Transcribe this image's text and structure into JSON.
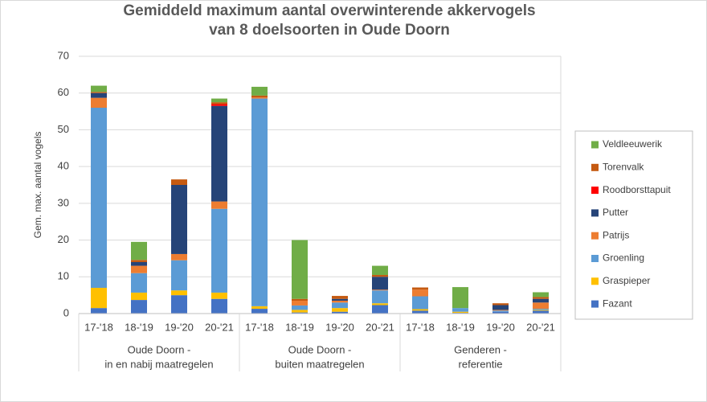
{
  "chart_data": {
    "type": "stacked_bar",
    "title": [
      "Gemiddeld maximum aantal overwinterende akkervogels",
      "van 8 doelsoorten in Oude Doorn"
    ],
    "y_label": "Gem. max. aantal vogels",
    "categories": [
      "17-'18",
      "18-'19",
      "19-'20",
      "20-'21",
      "17-'18",
      "18-'19",
      "19-'20",
      "20-'21",
      "17-'18",
      "18-'19",
      "19-'20",
      "20-'21"
    ],
    "groups": [
      {
        "label": [
          "Oude Doorn -",
          "in en nabij maatregelen"
        ],
        "size": 4
      },
      {
        "label": [
          "Oude Doorn -",
          "buiten maatregelen"
        ],
        "size": 4
      },
      {
        "label": [
          "Genderen -",
          "referentie"
        ],
        "size": 4
      }
    ],
    "series": [
      {
        "name": "Fazant",
        "color": "#4472c4",
        "values": [
          1.5,
          3.7,
          5,
          4,
          1.3,
          0.3,
          0.5,
          2.3,
          0.8,
          0.2,
          0.5,
          0.8
        ]
      },
      {
        "name": "Graspieper",
        "color": "#ffc000",
        "values": [
          5.5,
          2,
          1.3,
          1.7,
          0.7,
          0.7,
          1,
          0.5,
          0.4,
          0.3,
          0,
          0.2
        ]
      },
      {
        "name": "Groenling",
        "color": "#5b9bd5",
        "values": [
          49,
          5.3,
          8.2,
          22.8,
          56.5,
          1.2,
          1.5,
          3.5,
          3.5,
          1,
          0.3,
          0.3
        ]
      },
      {
        "name": "Patrijs",
        "color": "#ed7d31",
        "values": [
          2.7,
          2,
          1.7,
          2,
          0.3,
          1.3,
          0.5,
          0.2,
          1.8,
          0,
          0.2,
          1.7
        ]
      },
      {
        "name": "Putter",
        "color": "#264478",
        "values": [
          1.3,
          1,
          18.8,
          26,
          0,
          0,
          0.5,
          3.5,
          0,
          0,
          1.3,
          1
        ]
      },
      {
        "name": "Roodborsttapuit",
        "color": "#ff0000",
        "values": [
          0,
          0,
          0,
          0.5,
          0,
          0,
          0,
          0,
          0,
          0,
          0,
          0
        ]
      },
      {
        "name": "Torenvalk",
        "color": "#c55a11",
        "values": [
          0.3,
          0.6,
          1.5,
          0.5,
          0.5,
          0.5,
          0.8,
          0.5,
          0.6,
          0,
          0.5,
          0.5
        ]
      },
      {
        "name": "Veldleeuwerik",
        "color": "#70ad47",
        "values": [
          1.7,
          4.9,
          0,
          1,
          2.4,
          16,
          0,
          2.5,
          0,
          5.7,
          0,
          1.3
        ]
      }
    ],
    "ylim": [
      0,
      70
    ],
    "yticks": [
      0,
      10,
      20,
      30,
      40,
      50,
      60,
      70
    ],
    "grid": true,
    "legend": "right"
  }
}
